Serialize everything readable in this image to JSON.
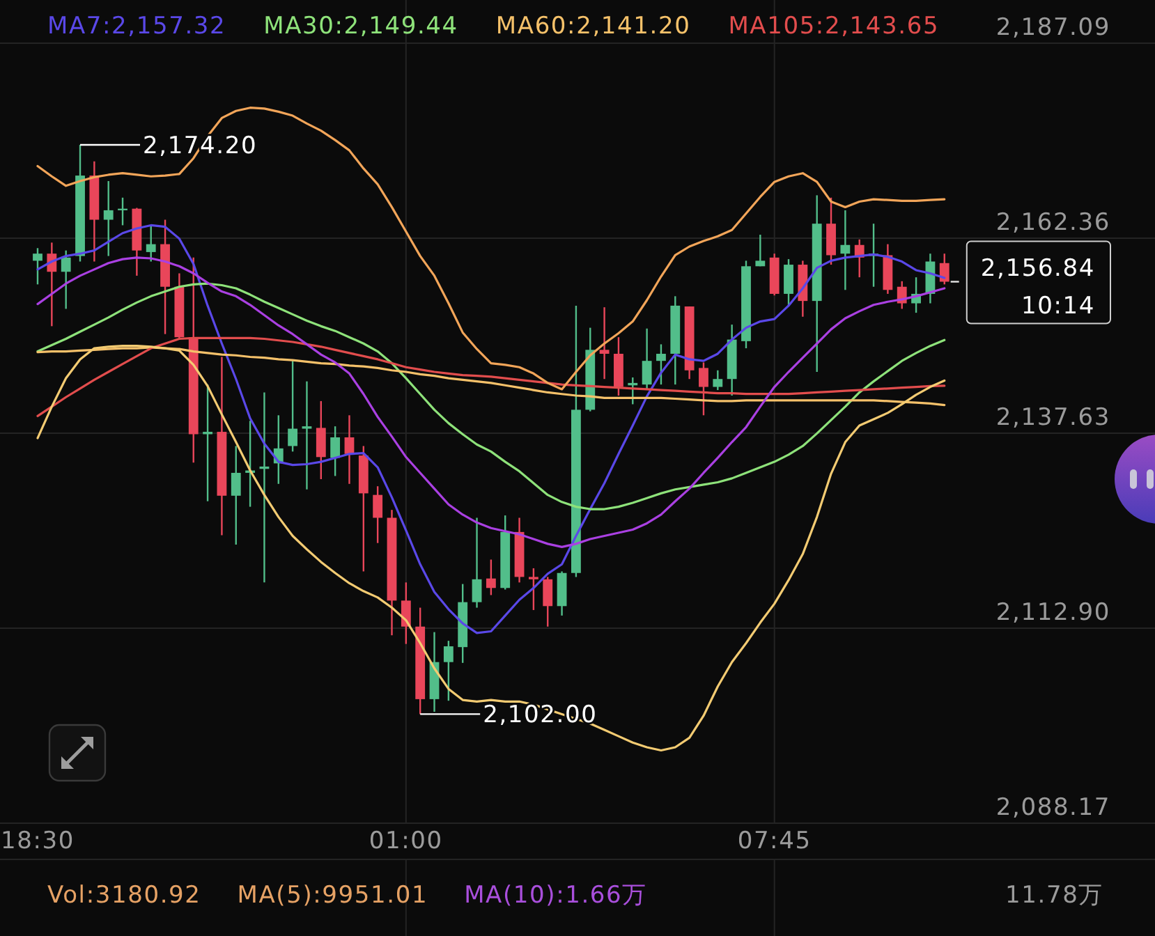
{
  "chart_data": [
    {
      "type": "candlestick",
      "categories": [
        "18:30",
        null,
        null,
        null,
        null,
        null,
        null,
        null,
        null,
        null,
        null,
        null,
        null,
        null,
        null,
        null,
        null,
        null,
        null,
        null,
        null,
        null,
        null,
        null,
        null,
        null,
        "01:00",
        null,
        null,
        null,
        null,
        null,
        null,
        null,
        null,
        null,
        null,
        null,
        null,
        null,
        null,
        null,
        null,
        null,
        null,
        null,
        null,
        null,
        null,
        null,
        null,
        null,
        "07:45",
        null,
        null,
        null,
        null,
        null,
        null,
        null,
        null,
        null,
        null,
        null,
        null
      ],
      "ohlc": [
        [
          2159.5,
          2161.1,
          2156.5,
          2160.4
        ],
        [
          2160.4,
          2161.8,
          2151.2,
          2158.1
        ],
        [
          2158.1,
          2160.8,
          2153.4,
          2159.9
        ],
        [
          2160.1,
          2174.2,
          2159.4,
          2170.3
        ],
        [
          2170.3,
          2172.1,
          2159.4,
          2164.7
        ],
        [
          2164.7,
          2169.6,
          2160.1,
          2165.9
        ],
        [
          2165.9,
          2167.5,
          2164.0,
          2166.1
        ],
        [
          2166.1,
          2166.2,
          2157.6,
          2160.8
        ],
        [
          2160.6,
          2164.0,
          2159.4,
          2161.6
        ],
        [
          2161.6,
          2164.7,
          2150.2,
          2156.2
        ],
        [
          2156.2,
          2157.9,
          2149.5,
          2149.8
        ],
        [
          2149.8,
          2159.9,
          2133.9,
          2137.5
        ],
        [
          2137.5,
          2143.8,
          2129.0,
          2137.8
        ],
        [
          2137.8,
          2147.3,
          2124.7,
          2129.7
        ],
        [
          2129.7,
          2136.0,
          2123.5,
          2132.6
        ],
        [
          2132.6,
          2139.2,
          2128.3,
          2132.9
        ],
        [
          2133.1,
          2142.8,
          2118.7,
          2133.4
        ],
        [
          2133.8,
          2139.9,
          2131.2,
          2135.7
        ],
        [
          2136.0,
          2146.8,
          2135.3,
          2138.2
        ],
        [
          2138.2,
          2144.2,
          2130.5,
          2138.5
        ],
        [
          2138.3,
          2141.7,
          2131.8,
          2134.6
        ],
        [
          2134.5,
          2138.5,
          2132.2,
          2137.1
        ],
        [
          2137.1,
          2139.9,
          2131.2,
          2135.0
        ],
        [
          2134.8,
          2136.0,
          2120.1,
          2130.0
        ],
        [
          2129.8,
          2130.9,
          2123.7,
          2126.9
        ],
        [
          2126.9,
          2127.9,
          2112.0,
          2116.4
        ],
        [
          2116.4,
          2118.7,
          2110.9,
          2113.1
        ],
        [
          2113.1,
          2115.5,
          2102.0,
          2103.9
        ],
        [
          2103.9,
          2112.4,
          2102.3,
          2108.6
        ],
        [
          2108.6,
          2111.3,
          2103.7,
          2110.6
        ],
        [
          2110.5,
          2118.5,
          2108.5,
          2116.2
        ],
        [
          2116.2,
          2126.9,
          2115.5,
          2119.1
        ],
        [
          2119.2,
          2121.6,
          2117.1,
          2118.0
        ],
        [
          2118.0,
          2127.2,
          2117.8,
          2125.1
        ],
        [
          2125.1,
          2126.9,
          2118.7,
          2119.4
        ],
        [
          2119.4,
          2120.5,
          2115.2,
          2119.1
        ],
        [
          2119.1,
          2119.4,
          2113.1,
          2115.7
        ],
        [
          2115.7,
          2120.1,
          2114.5,
          2119.9
        ],
        [
          2119.9,
          2153.8,
          2119.4,
          2140.6
        ],
        [
          2140.6,
          2151.0,
          2140.4,
          2148.2
        ],
        [
          2148.2,
          2153.6,
          2144.5,
          2147.7
        ],
        [
          2147.7,
          2149.8,
          2142.4,
          2143.5
        ],
        [
          2143.7,
          2144.7,
          2141.3,
          2144.0
        ],
        [
          2143.8,
          2150.9,
          2143.1,
          2146.8
        ],
        [
          2146.8,
          2148.9,
          2143.8,
          2147.7
        ],
        [
          2147.7,
          2155.0,
          2143.8,
          2153.8
        ],
        [
          2153.7,
          2153.7,
          2144.5,
          2145.6
        ],
        [
          2145.9,
          2146.6,
          2139.9,
          2143.5
        ],
        [
          2143.5,
          2145.6,
          2143.1,
          2144.5
        ],
        [
          2144.5,
          2151.4,
          2142.4,
          2149.5
        ],
        [
          2149.3,
          2159.5,
          2148.4,
          2158.8
        ],
        [
          2158.8,
          2162.8,
          2158.8,
          2159.5
        ],
        [
          2159.9,
          2160.4,
          2155.1,
          2155.3
        ],
        [
          2155.3,
          2159.7,
          2153.8,
          2159.0
        ],
        [
          2159.0,
          2159.5,
          2152.4,
          2154.4
        ],
        [
          2154.4,
          2167.8,
          2145.4,
          2164.2
        ],
        [
          2164.2,
          2167.5,
          2159.0,
          2160.2
        ],
        [
          2160.4,
          2165.9,
          2155.8,
          2161.5
        ],
        [
          2161.5,
          2162.2,
          2157.4,
          2159.9
        ],
        [
          2160.1,
          2164.2,
          2156.2,
          2160.4
        ],
        [
          2160.2,
          2161.6,
          2155.3,
          2155.8
        ],
        [
          2156.2,
          2156.9,
          2153.4,
          2154.1
        ],
        [
          2154.1,
          2157.4,
          2152.9,
          2155.3
        ],
        [
          2155.3,
          2160.4,
          2154.1,
          2159.4
        ],
        [
          2159.2,
          2160.4,
          2156.5,
          2156.84
        ]
      ],
      "colors": [
        "#52be8a",
        "#e9465a",
        "#52be8a",
        "#52be8a",
        "#e9465a",
        "#52be8a",
        "#52be8a",
        "#e9465a",
        "#52be8a",
        "#e9465a",
        "#e9465a",
        "#e9465a",
        "#52be8a",
        "#e9465a",
        "#52be8a",
        "#52be8a",
        "#52be8a",
        "#52be8a",
        "#52be8a",
        "#52be8a",
        "#e9465a",
        "#52be8a",
        "#e9465a",
        "#e9465a",
        "#e9465a",
        "#e9465a",
        "#e9465a",
        "#e9465a",
        "#52be8a",
        "#52be8a",
        "#52be8a",
        "#52be8a",
        "#e9465a",
        "#52be8a",
        "#e9465a",
        "#e9465a",
        "#e9465a",
        "#52be8a",
        "#52be8a",
        "#52be8a",
        "#e9465a",
        "#e9465a",
        "#52be8a",
        "#52be8a",
        "#52be8a",
        "#52be8a",
        "#e9465a",
        "#e9465a",
        "#52be8a",
        "#52be8a",
        "#52be8a",
        "#52be8a",
        "#e9465a",
        "#52be8a",
        "#e9465a",
        "#52be8a",
        "#e9465a",
        "#52be8a",
        "#e9465a",
        "#52be8a",
        "#e9465a",
        "#e9465a",
        "#52be8a",
        "#52be8a",
        "#e9465a"
      ],
      "series": [
        {
          "type": "line",
          "name": "MA7:2,157.32",
          "color": "#5a48e8",
          "values": [
            2158.4,
            2159.4,
            2160.1,
            2160.4,
            2160.8,
            2161.9,
            2163.0,
            2163.6,
            2164.0,
            2163.8,
            2162.3,
            2159.1,
            2153.8,
            2149.0,
            2144.5,
            2139.5,
            2136.3,
            2134.0,
            2133.6,
            2133.7,
            2134.0,
            2134.5,
            2135.0,
            2135.1,
            2133.3,
            2129.5,
            2125.3,
            2121.0,
            2117.5,
            2115.3,
            2113.5,
            2112.3,
            2112.5,
            2114.5,
            2116.5,
            2118.0,
            2119.8,
            2121.0,
            2124.6,
            2128.0,
            2131.3,
            2135.0,
            2138.6,
            2142.3,
            2145.3,
            2147.6,
            2147.0,
            2146.8,
            2147.7,
            2149.5,
            2151.0,
            2151.8,
            2152.1,
            2153.8,
            2156.0,
            2158.6,
            2159.5,
            2159.9,
            2160.1,
            2160.3,
            2160.0,
            2159.4,
            2158.3,
            2157.9,
            2157.32
          ]
        },
        {
          "type": "line",
          "name": "MA30:2,149.44",
          "color": "#8ee27a",
          "values": [
            2148.0,
            2148.8,
            2149.6,
            2150.5,
            2151.4,
            2152.3,
            2153.3,
            2154.2,
            2155.0,
            2155.6,
            2156.2,
            2156.5,
            2156.6,
            2156.4,
            2156.0,
            2155.2,
            2154.3,
            2153.5,
            2152.7,
            2151.9,
            2151.2,
            2150.6,
            2149.8,
            2149.0,
            2148.0,
            2146.5,
            2144.6,
            2142.6,
            2140.6,
            2138.9,
            2137.5,
            2136.2,
            2135.3,
            2134.0,
            2132.8,
            2131.3,
            2129.8,
            2128.9,
            2128.3,
            2128.0,
            2128.0,
            2128.3,
            2128.8,
            2129.4,
            2130.0,
            2130.5,
            2130.8,
            2131.1,
            2131.4,
            2131.9,
            2132.6,
            2133.3,
            2134.0,
            2134.9,
            2136.0,
            2137.6,
            2139.3,
            2141.0,
            2142.8,
            2144.2,
            2145.5,
            2146.8,
            2147.8,
            2148.7,
            2149.44
          ]
        },
        {
          "type": "line",
          "name": "MA60:2,141.20",
          "color": "#f5c16a",
          "values": [
            2147.9,
            2148.0,
            2148.0,
            2148.1,
            2148.2,
            2148.3,
            2148.4,
            2148.4,
            2148.5,
            2148.4,
            2148.3,
            2148.0,
            2147.8,
            2147.6,
            2147.5,
            2147.3,
            2147.2,
            2147.0,
            2146.9,
            2146.7,
            2146.5,
            2146.4,
            2146.2,
            2146.1,
            2145.9,
            2145.6,
            2145.4,
            2145.1,
            2144.9,
            2144.6,
            2144.4,
            2144.2,
            2144.0,
            2143.7,
            2143.4,
            2143.1,
            2142.8,
            2142.6,
            2142.4,
            2142.3,
            2142.1,
            2142.1,
            2142.1,
            2142.1,
            2142.1,
            2142.0,
            2141.9,
            2141.8,
            2141.7,
            2141.7,
            2141.8,
            2141.8,
            2141.8,
            2141.8,
            2141.8,
            2141.8,
            2141.8,
            2141.8,
            2141.8,
            2141.8,
            2141.7,
            2141.6,
            2141.5,
            2141.4,
            2141.2
          ]
        },
        {
          "type": "line",
          "name": "MA105:2,143.65",
          "color": "#e24d4d",
          "values": [
            2139.8,
            2141.0,
            2142.2,
            2143.3,
            2144.4,
            2145.4,
            2146.4,
            2147.4,
            2148.4,
            2149.0,
            2149.6,
            2149.7,
            2149.7,
            2149.7,
            2149.7,
            2149.7,
            2149.6,
            2149.4,
            2149.2,
            2148.9,
            2148.6,
            2148.2,
            2147.8,
            2147.4,
            2147.0,
            2146.5,
            2146.0,
            2145.7,
            2145.4,
            2145.2,
            2145.0,
            2144.9,
            2144.8,
            2144.6,
            2144.4,
            2144.2,
            2144.0,
            2143.8,
            2143.7,
            2143.6,
            2143.5,
            2143.4,
            2143.3,
            2143.2,
            2143.1,
            2143.0,
            2142.9,
            2142.8,
            2142.7,
            2142.7,
            2142.6,
            2142.6,
            2142.6,
            2142.6,
            2142.7,
            2142.8,
            2142.9,
            2143.0,
            2143.1,
            2143.2,
            2143.3,
            2143.4,
            2143.5,
            2143.6,
            2143.65
          ]
        },
        {
          "type": "line",
          "color": "#f2a559",
          "values": [
            2171.5,
            2170.2,
            2169.0,
            2169.6,
            2170.1,
            2170.4,
            2170.6,
            2170.4,
            2170.2,
            2170.3,
            2170.5,
            2172.5,
            2175.3,
            2177.6,
            2178.5,
            2178.9,
            2178.8,
            2178.4,
            2177.9,
            2176.9,
            2176.0,
            2174.8,
            2173.5,
            2171.2,
            2169.2,
            2166.3,
            2163.2,
            2160.1,
            2157.6,
            2154.1,
            2150.4,
            2148.3,
            2146.5,
            2146.3,
            2146.0,
            2145.2,
            2144.0,
            2143.2,
            2145.4,
            2147.5,
            2149.0,
            2150.3,
            2151.8,
            2154.5,
            2157.5,
            2160.2,
            2161.3,
            2162.0,
            2162.6,
            2163.4,
            2165.5,
            2167.6,
            2169.5,
            2170.2,
            2170.6,
            2169.5,
            2167.0,
            2166.3,
            2167.0,
            2167.3,
            2167.2,
            2167.1,
            2167.1,
            2167.2,
            2167.3
          ]
        },
        {
          "type": "line",
          "color": "#aa40e2",
          "values": [
            2154.0,
            2155.3,
            2156.6,
            2157.6,
            2158.4,
            2159.2,
            2159.7,
            2159.9,
            2159.8,
            2159.4,
            2158.8,
            2157.9,
            2156.7,
            2155.6,
            2155.0,
            2153.9,
            2152.6,
            2151.3,
            2150.2,
            2148.9,
            2147.6,
            2146.6,
            2145.2,
            2142.6,
            2139.7,
            2137.2,
            2134.6,
            2132.6,
            2130.6,
            2128.6,
            2127.3,
            2126.3,
            2125.6,
            2125.2,
            2124.8,
            2124.2,
            2123.6,
            2123.2,
            2123.6,
            2124.2,
            2124.6,
            2125.0,
            2125.4,
            2126.2,
            2127.3,
            2129.0,
            2130.6,
            2132.6,
            2134.5,
            2136.5,
            2138.4,
            2141.0,
            2143.5,
            2145.4,
            2147.2,
            2149.0,
            2150.8,
            2152.2,
            2153.1,
            2153.9,
            2154.3,
            2154.6,
            2155.0,
            2155.5,
            2156.0
          ]
        },
        {
          "type": "line",
          "color": "#f3cb72",
          "values": [
            2137.0,
            2141.0,
            2144.6,
            2147.0,
            2148.4,
            2148.6,
            2148.7,
            2148.7,
            2148.6,
            2148.4,
            2148.1,
            2146.3,
            2143.6,
            2140.0,
            2136.5,
            2132.9,
            2129.8,
            2127.0,
            2124.6,
            2122.9,
            2121.3,
            2119.9,
            2118.6,
            2117.6,
            2116.8,
            2115.5,
            2113.9,
            2111.0,
            2107.8,
            2105.2,
            2103.8,
            2103.6,
            2103.8,
            2103.6,
            2103.6,
            2103.2,
            2102.6,
            2102.0,
            2101.4,
            2100.8,
            2100.0,
            2099.2,
            2098.4,
            2097.8,
            2097.4,
            2097.8,
            2099.0,
            2101.8,
            2105.5,
            2108.6,
            2111.0,
            2113.6,
            2116.0,
            2119.0,
            2122.3,
            2127.0,
            2132.5,
            2136.5,
            2138.6,
            2139.4,
            2140.2,
            2141.3,
            2142.5,
            2143.5,
            2144.3
          ]
        }
      ],
      "ylim": [
        2088.17,
        2187.09
      ],
      "yticks": [
        {
          "value": 2088.17,
          "label": "2,088.17"
        },
        {
          "value": 2112.9,
          "label": "2,112.90"
        },
        {
          "value": 2137.63,
          "label": "2,137.63"
        },
        {
          "value": 2162.36,
          "label": "2,162.36"
        },
        {
          "value": 2187.09,
          "label": "2,187.09"
        }
      ],
      "grid": true,
      "legend": "top",
      "annotations": [
        {
          "text": "2,174.20",
          "y": 2174.2
        },
        {
          "text": "2,102.00",
          "y": 2102.0
        },
        "2,156.84",
        "10:14"
      ]
    },
    {
      "type": "other",
      "annotations": [
        "Vol:3180.92",
        "MA(5):9951.01",
        "MA(10):1.66万",
        "11.78万"
      ]
    }
  ]
}
